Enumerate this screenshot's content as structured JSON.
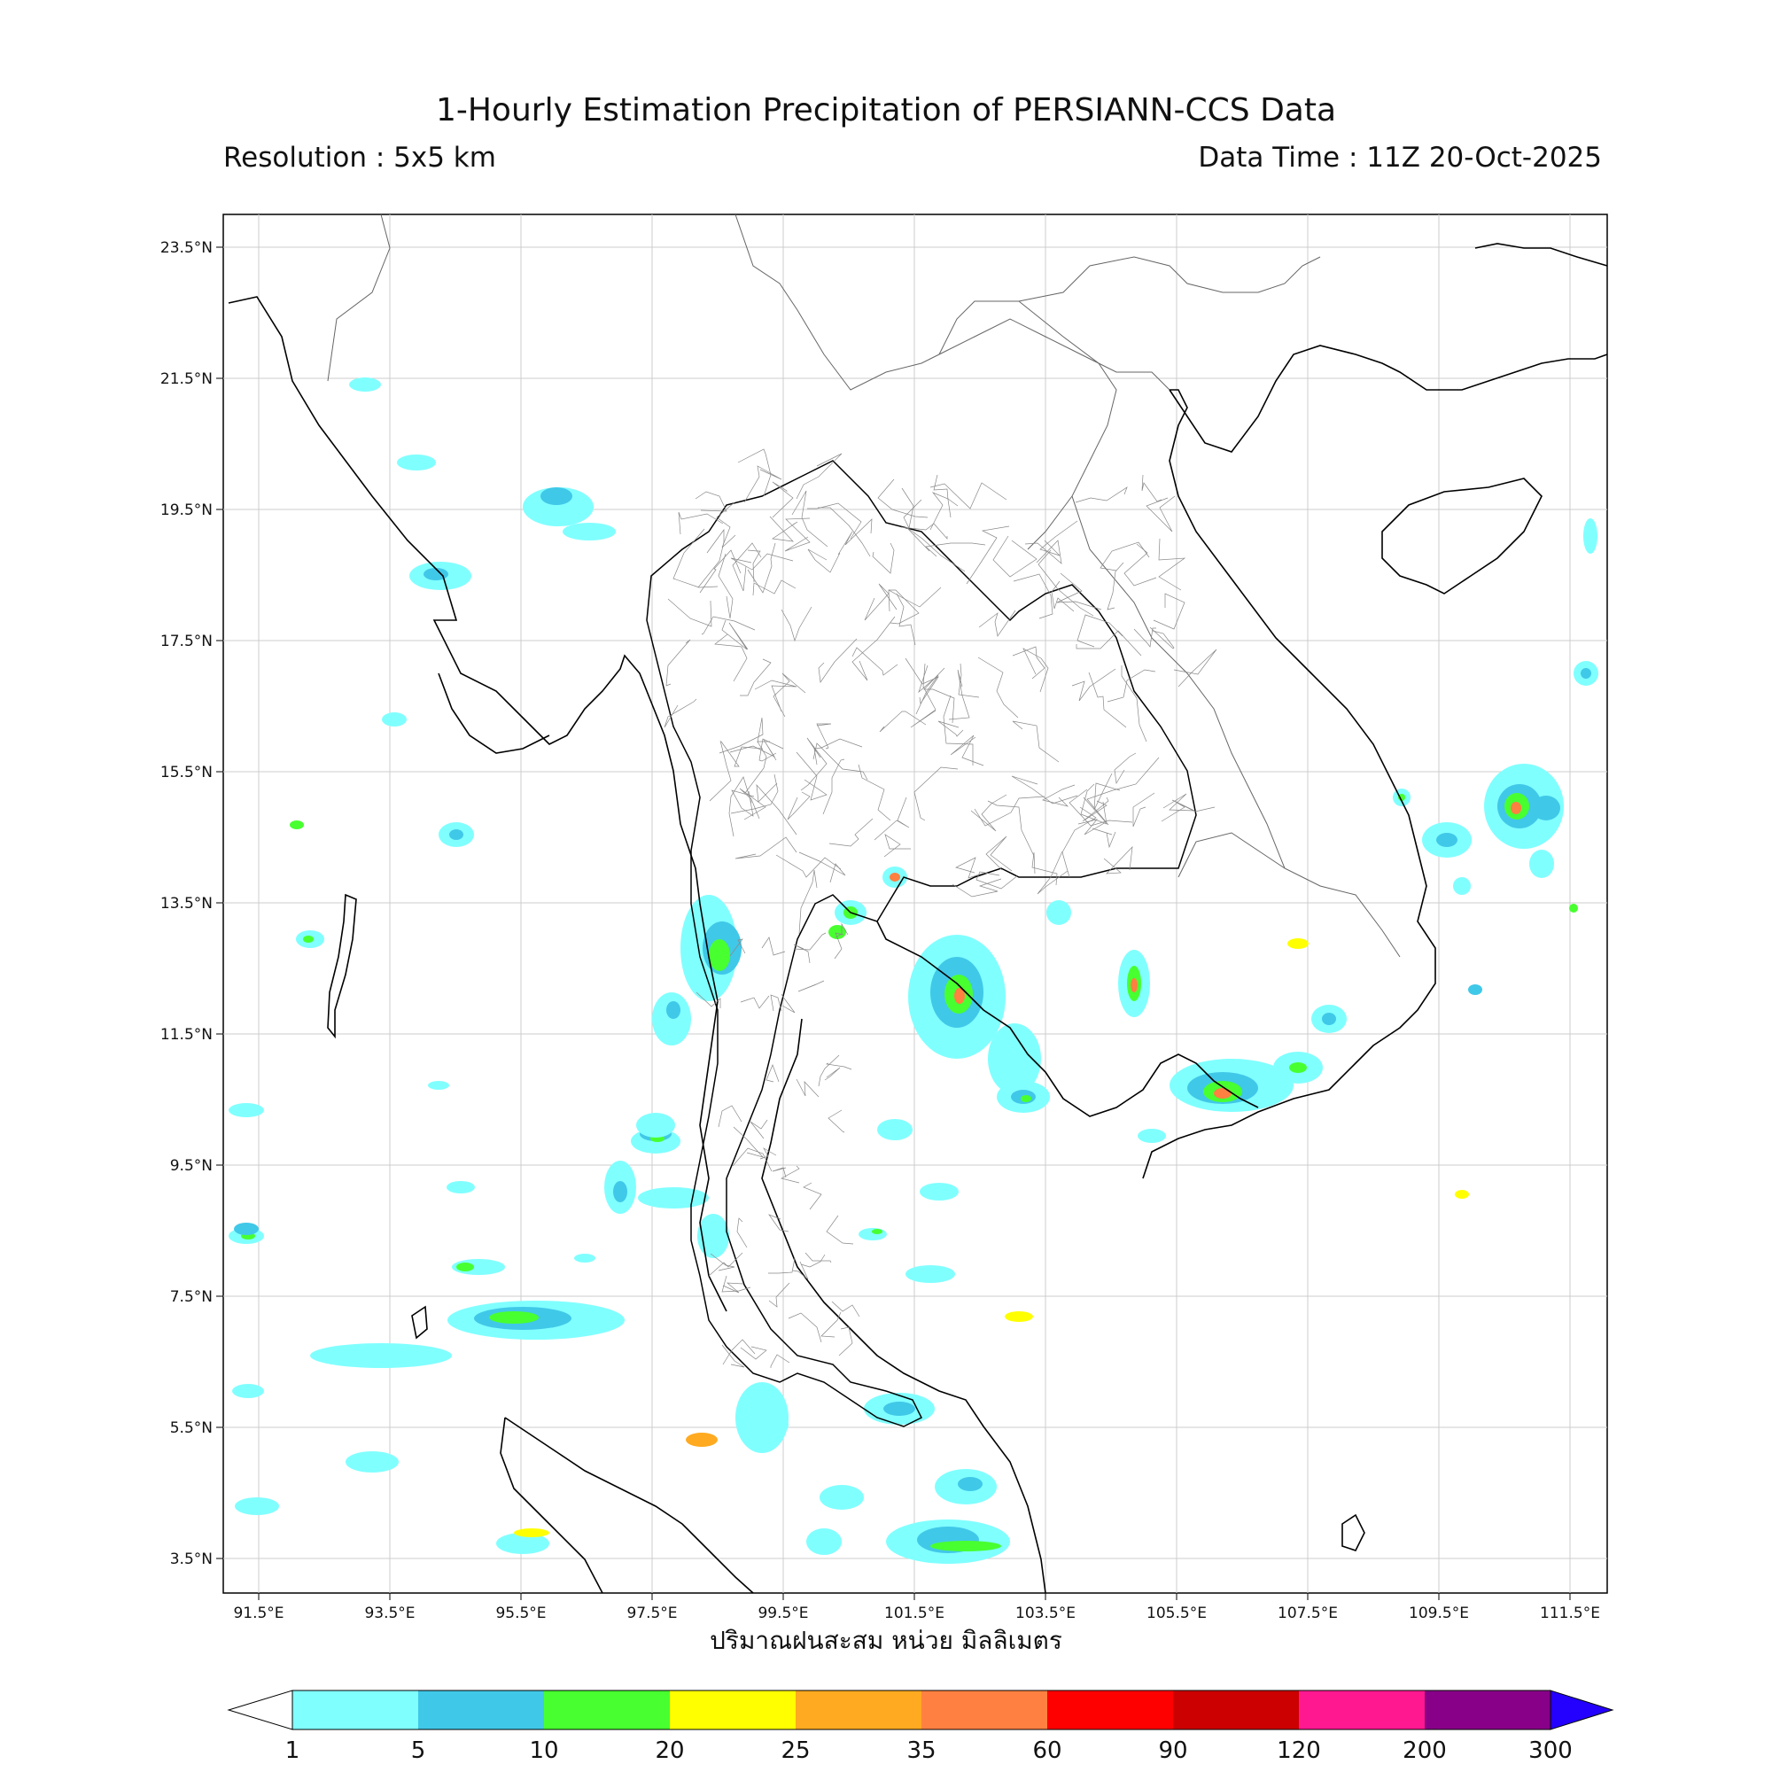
{
  "title": "1-Hourly Estimation Precipitation of PERSIANN-CCS Data",
  "resolution": "Resolution : 5x5 km",
  "data_time": "Data Time : 11Z 20-Oct-2025",
  "xlabel": "ปริมาณฝนสะสม หน่วย มิลลิเมตร",
  "lat_ticks": [
    "23.5°N",
    "21.5°N",
    "19.5°N",
    "17.5°N",
    "15.5°N",
    "13.5°N",
    "11.5°N",
    "9.5°N",
    "7.5°N",
    "5.5°N",
    "3.5°N"
  ],
  "lon_ticks": [
    "91.5°E",
    "93.5°E",
    "95.5°E",
    "97.5°E",
    "99.5°E",
    "101.5°E",
    "103.5°E",
    "105.5°E",
    "107.5°E",
    "109.5°E",
    "111.5°E"
  ],
  "colorbar": {
    "labels": [
      "1",
      "5",
      "10",
      "20",
      "25",
      "35",
      "60",
      "90",
      "120",
      "200",
      "300"
    ],
    "colors": [
      "#80ffff",
      "#40c8e8",
      "#48ff30",
      "#ffff00",
      "#ffaa20",
      "#ff8040",
      "#ff0000",
      "#cc0000",
      "#ff1890",
      "#880088",
      "#2400ff"
    ]
  },
  "rain_colors": {
    "light": "#80ffff",
    "med": "#40c8e8",
    "green": "#48ff30",
    "yellow": "#ffff00",
    "orange": "#ff8040"
  }
}
